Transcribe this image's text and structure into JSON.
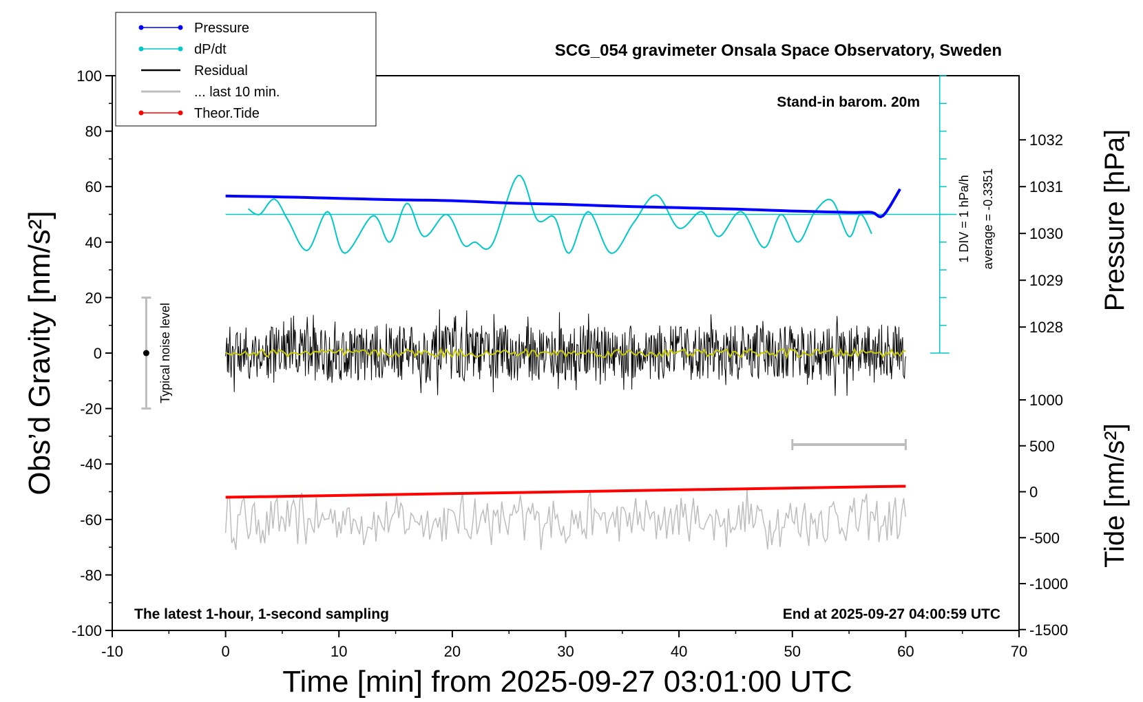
{
  "chart_data": {
    "type": "line",
    "title": "SCG_054 gravimeter Onsala Space Observatory, Sweden",
    "xlabel": "Time [min] from 2025-09-27 03:01:00 UTC",
    "ylabel_left": "Obs’d Gravity [nm/s²]",
    "ylabel_right_top": "Pressure [hPa]",
    "ylabel_right_bottom": "Tide [nm/s²]",
    "xlim": [
      -10,
      70
    ],
    "ylim_left": [
      -100,
      100
    ],
    "x_ticks": [
      "-10",
      "0",
      "10",
      "20",
      "30",
      "40",
      "50",
      "60",
      "70"
    ],
    "y_ticks_left": [
      "-100",
      "-80",
      "-60",
      "-40",
      "-20",
      "0",
      "20",
      "40",
      "60",
      "80",
      "100"
    ],
    "y_ticks_pressure": [
      "1028",
      "1029",
      "1030",
      "1031",
      "1032"
    ],
    "y_ticks_tide": [
      "-1500",
      "-1000",
      "-500",
      "0",
      "500",
      "1000"
    ],
    "legend": [
      {
        "name": "Pressure",
        "color": "#0000ff",
        "marker": true
      },
      {
        "name": "dP/dt",
        "color": "#00c8c8",
        "marker": true
      },
      {
        "name": "Residual",
        "color": "#000000",
        "marker": false
      },
      {
        "name": "... last 10 min.",
        "color": "#bdbdbd",
        "marker": false
      },
      {
        "name": "Theor.Tide",
        "color": "#ff0000",
        "marker": true
      }
    ],
    "annotations": {
      "barometer": "Stand-in barom. 20m",
      "latest": "The latest 1-hour, 1-second sampling",
      "end": "End at 2025-09-27 04:00:59 UTC",
      "div": "1 DIV = 1 hPa/h",
      "average": "average = -0.3351",
      "noise": "Typical noise level"
    },
    "noise_bar_range": [
      -20,
      20
    ],
    "last10_bar_range_min": [
      50,
      60
    ],
    "series": [
      {
        "name": "Pressure",
        "unit": "hPa",
        "x": [
          0,
          5,
          10,
          15,
          20,
          25,
          30,
          35,
          40,
          45,
          50,
          55,
          57,
          58,
          59.5
        ],
        "values": [
          1030.8,
          1030.78,
          1030.75,
          1030.72,
          1030.7,
          1030.65,
          1030.62,
          1030.58,
          1030.55,
          1030.52,
          1030.48,
          1030.45,
          1030.45,
          1030.38,
          1030.95
        ]
      },
      {
        "name": "dP/dt",
        "unit": "hPa/h",
        "baseline": 50,
        "x": [
          2,
          3,
          4.3,
          5.5,
          7.2,
          9,
          10.5,
          13,
          14.5,
          16,
          17.5,
          19.5,
          21,
          22,
          23.5,
          25.8,
          27.5,
          29,
          30.3,
          32,
          34,
          36,
          38,
          40,
          42,
          43.5,
          45.5,
          47.5,
          49,
          50.5,
          52,
          53.5,
          55,
          56,
          57
        ],
        "values": [
          52,
          50,
          55.5,
          48,
          37,
          51,
          36,
          49.5,
          40,
          54,
          42,
          50,
          39,
          40,
          39,
          64,
          48,
          49,
          36,
          51,
          36,
          47,
          57,
          45,
          51,
          42,
          51,
          38,
          50,
          40,
          51,
          55,
          42,
          50,
          43
        ]
      },
      {
        "name": "Residual",
        "unit": "nm/s²",
        "x_range": [
          0,
          60
        ],
        "mean": 0,
        "typical_amplitude": 10
      },
      {
        "name": "... last 10 min.",
        "unit": "nm/s²",
        "x_range": [
          0,
          60
        ],
        "mean": -60,
        "typical_amplitude": 10
      },
      {
        "name": "Theor.Tide",
        "unit": "nm/s²",
        "x": [
          0,
          60
        ],
        "values": [
          -52,
          -48
        ]
      }
    ]
  }
}
